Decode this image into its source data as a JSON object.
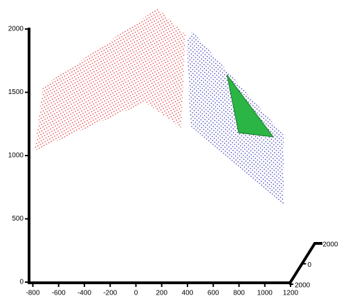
{
  "chart_data": {
    "type": "scatter3d",
    "xlim": [
      -840,
      1200
    ],
    "xticks": [
      -800,
      -600,
      -400,
      -200,
      0,
      200,
      400,
      600,
      800,
      1000,
      1200
    ],
    "ylim": [
      0,
      2000
    ],
    "yticks": [
      0,
      500,
      1000,
      1500,
      2000
    ],
    "zlim": [
      2000,
      -2000
    ],
    "zticks": [
      -2000,
      0,
      2000
    ]
  }
}
